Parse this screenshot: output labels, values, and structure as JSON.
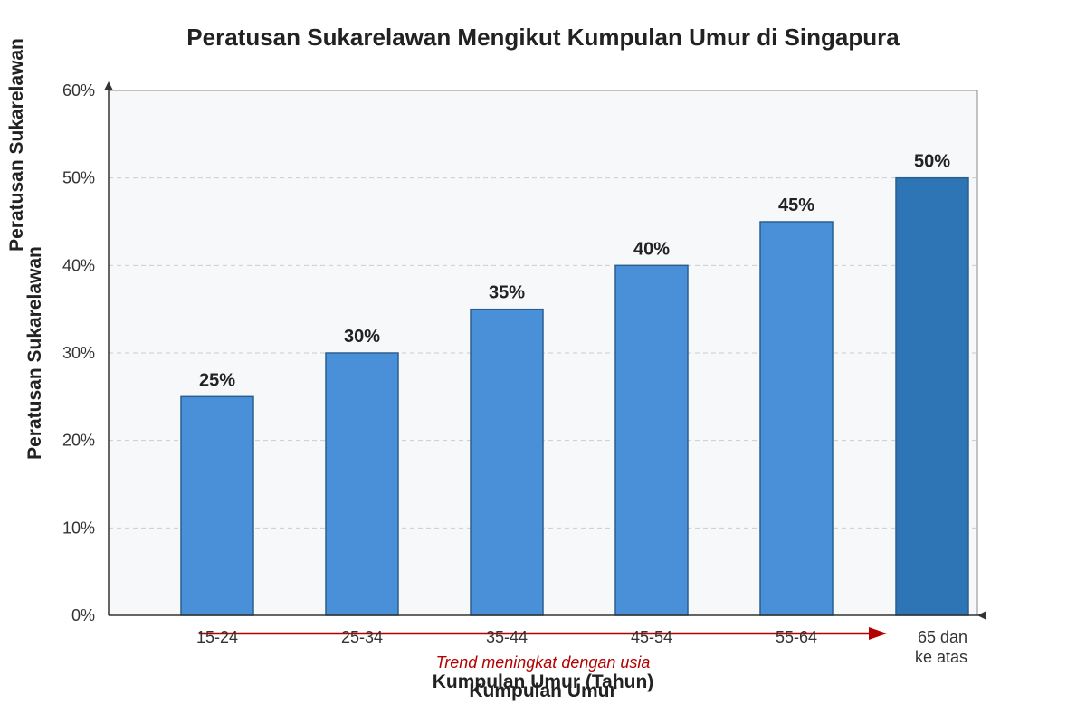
{
  "chart_data": {
    "type": "bar",
    "title": "Peratusan Sukarelawan Mengikut Kumpulan Umur di Singapura",
    "ylabel": "Peratusan Sukarelawan",
    "ylabel_overlay": "Peratusan Sukarelawan",
    "xlabel": "Kumpulan Umur (Tahun)",
    "xlabel_overlay": "Kumpulan Umur",
    "categories": [
      "15-24",
      "25-34",
      "35-44",
      "45-54",
      "55-64",
      "65 dan ke atas"
    ],
    "values": [
      25,
      30,
      35,
      40,
      45,
      50
    ],
    "data_labels": [
      "25%",
      "30%",
      "35%",
      "40%",
      "45%",
      "50%"
    ],
    "y_ticks": [
      "0%",
      "10%",
      "20%",
      "30%",
      "40%",
      "50%",
      "60%"
    ],
    "ylim": [
      0,
      60
    ],
    "grid": true,
    "annotation": "Trend meningkat dengan usia",
    "colors": {
      "bar": "#4A90D9",
      "bar_highlight": "#2E75B6",
      "bar_stroke": "#2B5F8E",
      "plot_bg": "#F7F8FA",
      "grid": "#CCCCCC",
      "trend": "#B30000"
    }
  }
}
